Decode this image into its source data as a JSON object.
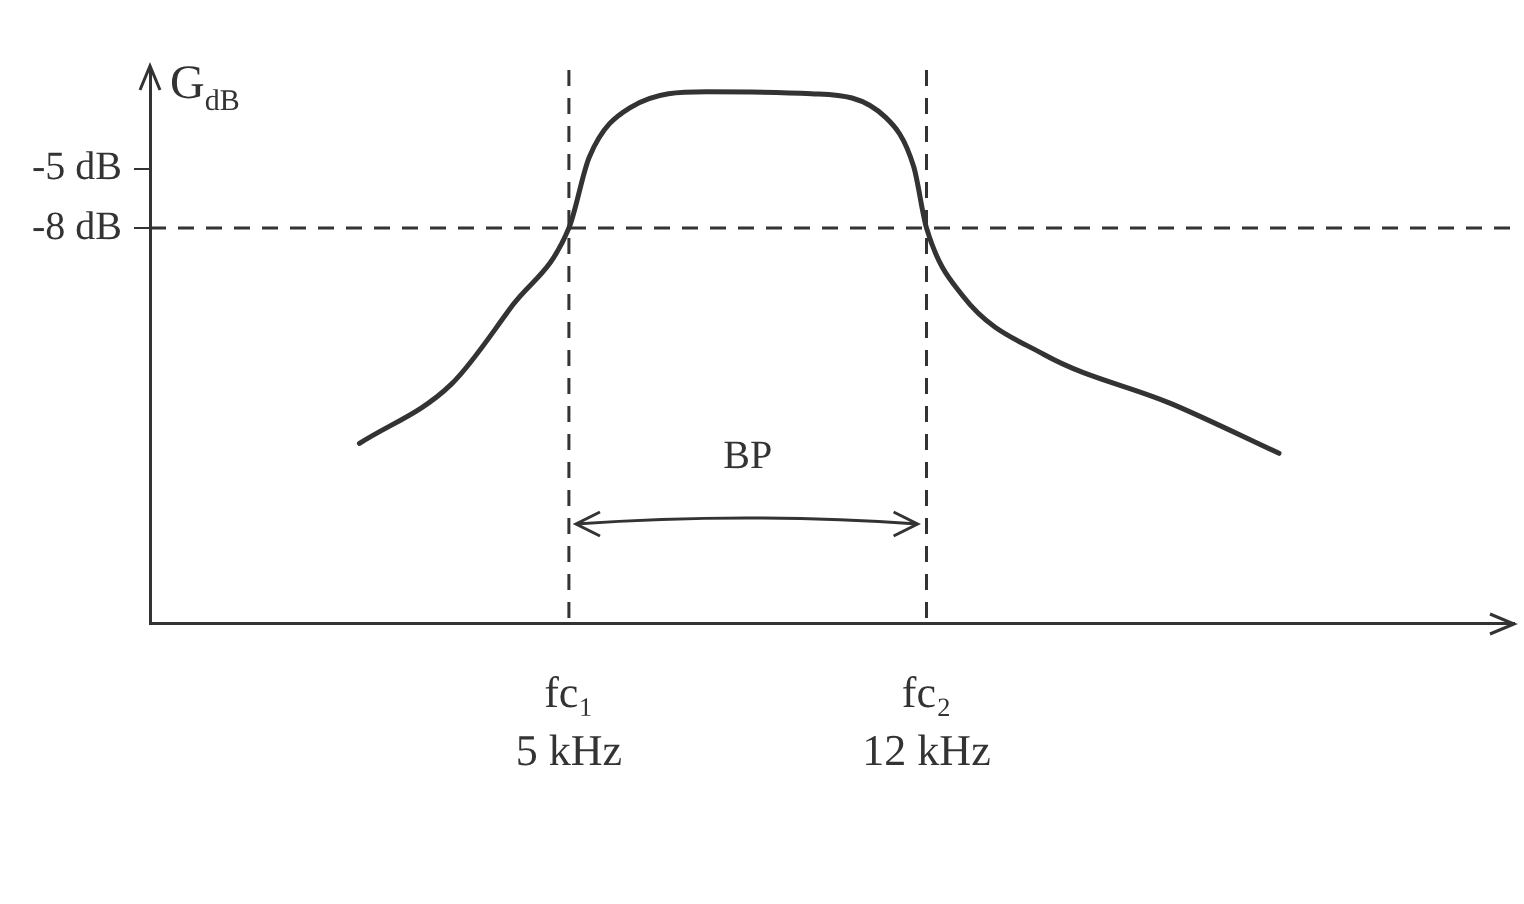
{
  "chart_data": {
    "type": "line",
    "ylabel": "G$_{dB}$",
    "xlim": [
      -3.2,
      23.5
    ],
    "ylim": [
      -28,
      0
    ],
    "xticks": [
      {
        "value": 5,
        "label": "5 kHz"
      },
      {
        "value": 12,
        "label": "12 kHz"
      }
    ],
    "yticks": [
      {
        "value": -5,
        "label": "-5 dB"
      },
      {
        "value": -8,
        "label": "-8 dB"
      }
    ],
    "series": [
      {
        "color": "#333333",
        "x": [
          0.9,
          2.7,
          3.9,
          5,
          5.4,
          6.2,
          7.7,
          9.75,
          11.2,
          11.75,
          12,
          12.7,
          14.3,
          16.8,
          18.9
        ],
        "values": [
          -18.9,
          -15.9,
          -11.9,
          -8,
          -4.4,
          -1.9,
          -1.1,
          -1.2,
          -2.4,
          -4.9,
          -8,
          -11.4,
          -14.4,
          -16.9,
          -19.4
        ]
      }
    ],
    "ref_lines": [
      {
        "axis": "y",
        "value": -8,
        "line_style": "dashed"
      },
      {
        "axis": "x",
        "value": 5,
        "line_style": "dashed",
        "label": "fc₁"
      },
      {
        "axis": "x",
        "value": 12,
        "line_style": "dashed",
        "label": "fc₂"
      }
    ],
    "annotations": [
      "BP"
    ],
    "grid": false,
    "legend": false,
    "marker": "none",
    "line_style": "solid"
  }
}
